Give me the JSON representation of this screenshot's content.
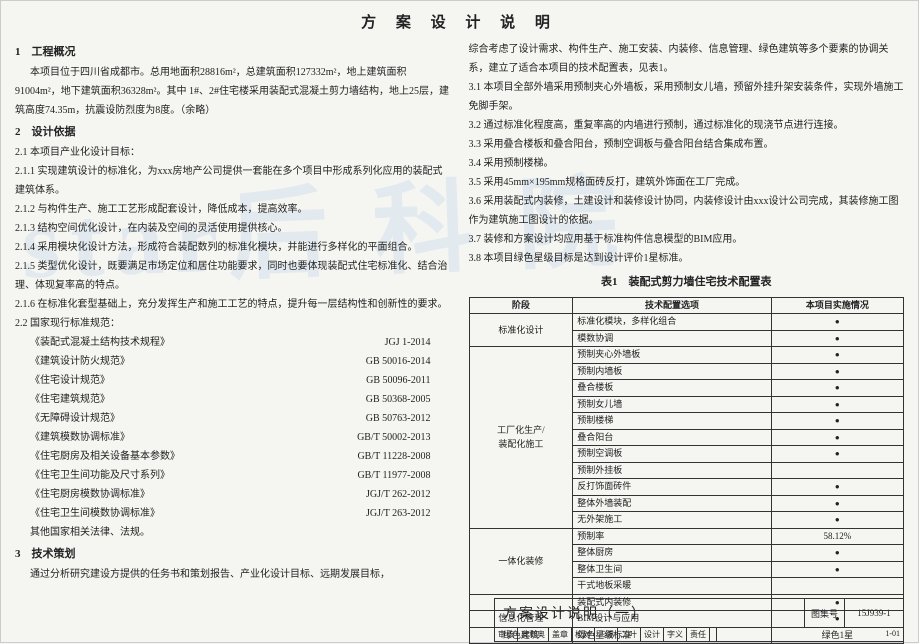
{
  "title": "方 案 设 计 说 明",
  "watermark": "star后 科 院",
  "left": {
    "s1_h": "1　工程概况",
    "s1_p": "本项目位于四川省成都市。总用地面积28816m²，总建筑面积127332m²，地上建筑面积91004m²，地下建筑面积36328m²。其中 1#、2#住宅楼采用装配式混凝土剪力墙结构，地上25层，建筑高度74.35m，抗震设防烈度为8度。（余略）",
    "s2_h": "2　设计依据",
    "s2_1": "2.1 本项目产业化设计目标：",
    "s2_1_1": "2.1.1 实现建筑设计的标准化，为xxx房地产公司提供一套能在多个项目中形成系列化应用的装配式建筑体系。",
    "s2_1_2": "2.1.2 与构件生产、施工工艺形成配套设计，降低成本，提高效率。",
    "s2_1_3": "2.1.3 结构空间优化设计，在内装及空间的灵活使用提供核心。",
    "s2_1_4": "2.1.4 采用模块化设计方法，形成符合装配数列的标准化模块，并能进行多样化的平面组合。",
    "s2_1_5": "2.1.5 类型优化设计，既要满足市场定位和居住功能要求，同时也要体现装配式住宅标准化、结合治理、体现复率高的特点。",
    "s2_1_6": "2.1.6 在标准化套型基础上，充分发挥生产和施工工艺的特点，提升每一层结构性和创新性的要求。",
    "s2_2": "2.2 国家现行标准规范：",
    "standards": [
      {
        "name": "《装配式混凝土结构技术规程》",
        "code": "JGJ 1-2014"
      },
      {
        "name": "《建筑设计防火规范》",
        "code": "GB 50016-2014"
      },
      {
        "name": "《住宅设计规范》",
        "code": "GB 50096-2011"
      },
      {
        "name": "《住宅建筑规范》",
        "code": "GB 50368-2005"
      },
      {
        "name": "《无障碍设计规范》",
        "code": "GB 50763-2012"
      },
      {
        "name": "《建筑模数协调标准》",
        "code": "GB/T 50002-2013"
      },
      {
        "name": "《住宅厨房及相关设备基本参数》",
        "code": "GB/T 11228-2008"
      },
      {
        "name": "《住宅卫生间功能及尺寸系列》",
        "code": "GB/T 11977-2008"
      },
      {
        "name": "《住宅厨房模数协调标准》",
        "code": "JGJ/T 262-2012"
      },
      {
        "name": "《住宅卫生间模数协调标准》",
        "code": "JGJ/T 263-2012"
      }
    ],
    "s2_2_other": "其他国家相关法律、法规。",
    "s3_h": "3　技术策划",
    "s3_p": "通过分析研究建设方提供的任务书和策划报告、产业化设计目标、远期发展目标，"
  },
  "right": {
    "r0": "综合考虑了设计需求、构件生产、施工安装、内装修、信息管理、绿色建筑等多个要素的协调关系，建立了适合本项目的技术配置表，见表1。",
    "r31": "3.1 本项目全部外墙采用预制夹心外墙板，采用预制女儿墙，预留外挂升架安装条件，实现外墙施工免脚手架。",
    "r32": "3.2 通过标准化程度高，重复率高的内墙进行预制，通过标准化的现浇节点进行连接。",
    "r33": "3.3 采用叠合楼板和叠合阳台，预制空调板与叠合阳台结合集成布置。",
    "r34": "3.4 采用预制楼梯。",
    "r35": "3.5 采用45mm×195mm规格面砖反打，建筑外饰面在工厂完成。",
    "r36": "3.6 采用装配式内装修，土建设计和装修设计协同，内装修设计由xxx设计公司完成，其装修施工图作为建筑施工图设计的依据。",
    "r37": "3.7 装修和方案设计均应用基于标准构件信息模型的BIM应用。",
    "r38": "3.8 本项目绿色星级目标是达到设计评价1星标准。",
    "table_title": "表1　装配式剪力墙住宅技术配置表",
    "th1": "阶段",
    "th2": "技术配置选项",
    "th3": "本项目实施情况",
    "rows": [
      {
        "g": "标准化设计",
        "gspan": 2,
        "item": "标准化模块，多样化组合",
        "val": "dot"
      },
      {
        "item": "模数协调",
        "val": "dot"
      },
      {
        "g": "工厂化生产/\n装配化施工",
        "gspan": 11,
        "item": "预制夹心外墙板",
        "val": "dot"
      },
      {
        "item": "预制内墙板",
        "val": "dot"
      },
      {
        "item": "叠合楼板",
        "val": "dot"
      },
      {
        "item": "预制女儿墙",
        "val": "dot"
      },
      {
        "item": "预制楼梯",
        "val": "dot"
      },
      {
        "item": "叠合阳台",
        "val": "dot"
      },
      {
        "item": "预制空调板",
        "val": "dot"
      },
      {
        "item": "预制外挂板",
        "val": ""
      },
      {
        "item": "反打饰面砖件",
        "val": "dot"
      },
      {
        "item": "整体外墙装配",
        "val": "dot"
      },
      {
        "item": "无外架施工",
        "val": "dot"
      },
      {
        "g": "一体化装修",
        "gspan": 4,
        "item": "预制率",
        "val": "58.12%"
      },
      {
        "item": "整体厨房",
        "val": "dot"
      },
      {
        "item": "整体卫生间",
        "val": "dot"
      },
      {
        "item": "干式地板采暖",
        "val": ""
      },
      {
        "g": "",
        "gspan": 1,
        "item": "装配式内装修",
        "val": "dot"
      },
      {
        "g": "信息化管理",
        "gspan": 1,
        "item": "BIM设计与应用",
        "val": "dot"
      },
      {
        "g": "绿色建筑",
        "gspan": 1,
        "item": "绿色星级标准",
        "val": "绿色1星"
      }
    ]
  },
  "footer": {
    "main": "方案设计说明（一）",
    "ji_label": "图集号",
    "ji_val": "15J939-1",
    "row2": [
      "审核",
      "奥利奥",
      "盖章",
      "校对",
      "三踢",
      "二叶",
      "设计",
      "字义",
      "责任",
      "",
      "1-01"
    ]
  }
}
